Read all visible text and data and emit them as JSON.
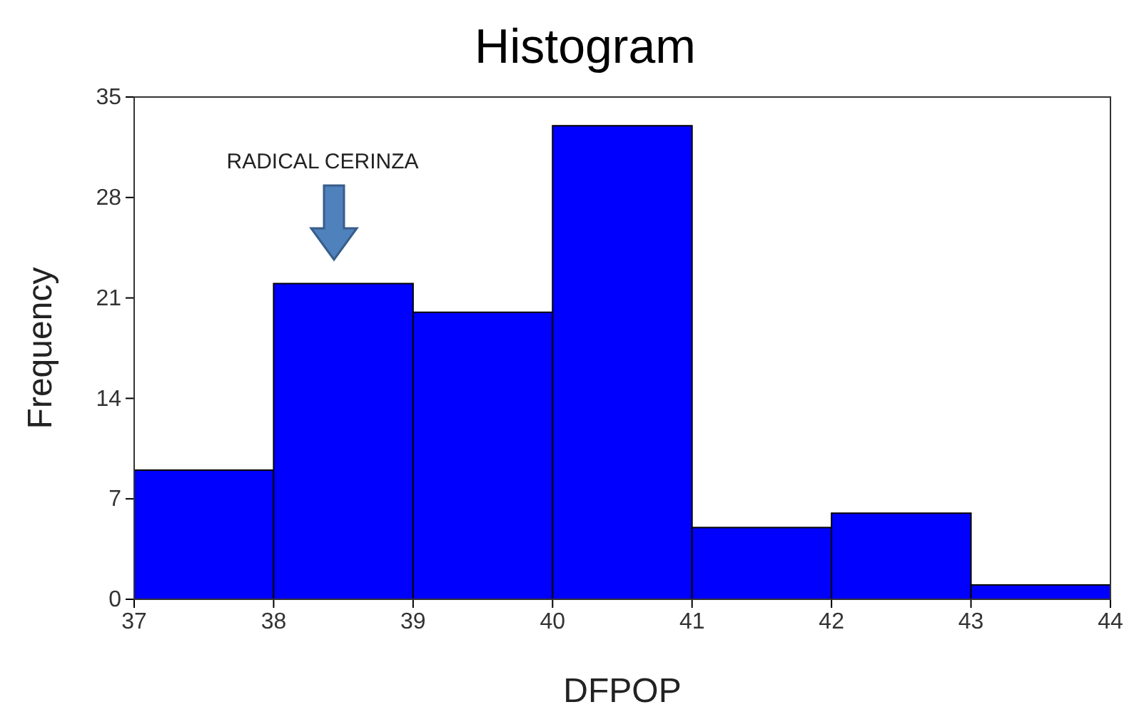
{
  "chart_data": {
    "type": "histogram",
    "title": "Histogram",
    "xlabel": "DFPOP",
    "ylabel": "Frequency",
    "bins": [
      37,
      38,
      39,
      40,
      41,
      42,
      43,
      44
    ],
    "values": [
      9,
      22,
      20,
      33,
      5,
      6,
      1
    ],
    "color": "#0000ff",
    "xlim": [
      37,
      44
    ],
    "xticks": [
      37,
      38,
      39,
      40,
      41,
      42,
      43,
      44
    ],
    "ylim": [
      0,
      35
    ],
    "yticks": [
      0,
      7,
      14,
      21,
      28,
      35
    ],
    "annotations": [
      "RADICAL CERINZA"
    ]
  }
}
